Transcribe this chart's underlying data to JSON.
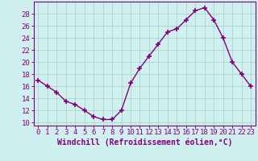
{
  "x": [
    0,
    1,
    2,
    3,
    4,
    5,
    6,
    7,
    8,
    9,
    10,
    11,
    12,
    13,
    14,
    15,
    16,
    17,
    18,
    19,
    20,
    21,
    22,
    23
  ],
  "y": [
    17,
    16,
    15,
    13.5,
    13,
    12,
    11,
    10.5,
    10.5,
    12,
    16.5,
    19,
    21,
    23,
    25,
    25.5,
    27,
    28.5,
    29,
    27,
    24,
    20,
    18,
    16
  ],
  "line_color": "#800080",
  "marker": "+",
  "marker_size": 4,
  "marker_lw": 1.2,
  "bg_color": "#cff0ee",
  "grid_color": "#b0d8d0",
  "xlabel": "Windchill (Refroidissement éolien,°C)",
  "xlabel_fontsize": 7,
  "ylabel_ticks": [
    10,
    12,
    14,
    16,
    18,
    20,
    22,
    24,
    26,
    28
  ],
  "xtick_labels": [
    "0",
    "1",
    "2",
    "3",
    "4",
    "5",
    "6",
    "7",
    "8",
    "9",
    "10",
    "11",
    "12",
    "13",
    "14",
    "15",
    "16",
    "17",
    "18",
    "19",
    "20",
    "21",
    "22",
    "23"
  ],
  "ylim": [
    9.5,
    30.0
  ],
  "xlim": [
    -0.5,
    23.5
  ],
  "tick_fontsize": 6.5,
  "label_color": "#800080",
  "line_width": 1.0
}
